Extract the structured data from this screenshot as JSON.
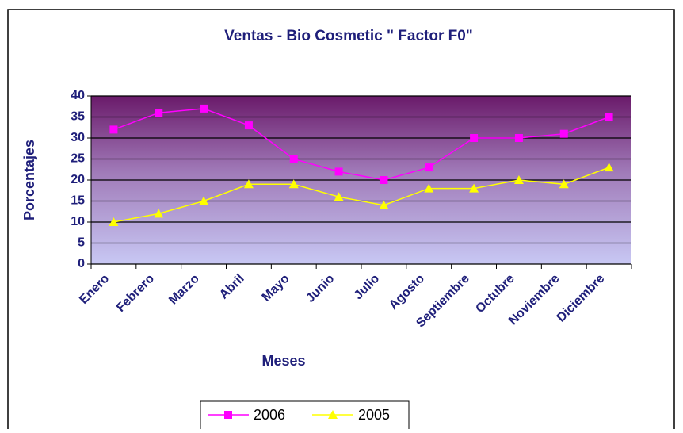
{
  "chart_data": {
    "type": "line",
    "title": "Ventas - Bio Cosmetic \" Factor F0\"",
    "x_label": "Meses",
    "y_label": "Porcentajes",
    "categories": [
      "Enero",
      "Febrero",
      "Marzo",
      "Abril",
      "Mayo",
      "Junio",
      "Julio",
      "Agosto",
      "Septiembre",
      "Octubre",
      "Noviembre",
      "Diciembre"
    ],
    "series": [
      {
        "name": "2006",
        "color": "#ff00ff",
        "marker": "square",
        "values": [
          32,
          36,
          37,
          33,
          25,
          22,
          20,
          23,
          30,
          30,
          31,
          35
        ]
      },
      {
        "name": "2005",
        "color": "#ffff00",
        "marker": "triangle",
        "values": [
          10,
          12,
          15,
          19,
          19,
          16,
          14,
          18,
          18,
          20,
          19,
          23
        ]
      }
    ],
    "ylim": [
      0,
      40
    ],
    "yticks": [
      0,
      5,
      10,
      15,
      20,
      25,
      30,
      35,
      40
    ],
    "grid": true,
    "legend": "bottom"
  }
}
